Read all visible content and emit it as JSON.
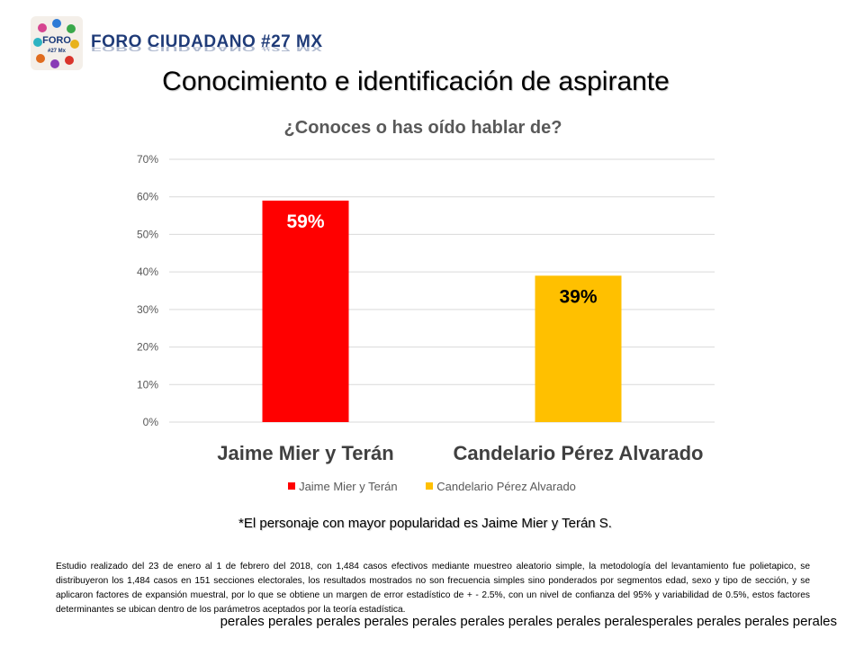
{
  "header": {
    "brand": "FORO CIUDADANO #27 MX",
    "logo": {
      "line1": "FORO",
      "line2": "#27 Mx"
    }
  },
  "page_title": "Conocimiento e identificación de aspirante",
  "chart_data": {
    "type": "bar",
    "title": "¿Conoces o has oído hablar de?",
    "categories": [
      "Jaime Mier y Terán",
      "Candelario Pérez Alvarado"
    ],
    "values": [
      59,
      39
    ],
    "data_labels": [
      "59%",
      "39%"
    ],
    "colors": [
      "#ff0000",
      "#ffc000"
    ],
    "ylim": [
      0,
      70
    ],
    "yticks": [
      0,
      10,
      20,
      30,
      40,
      50,
      60,
      70
    ],
    "ytick_labels": [
      "0%",
      "10%",
      "20%",
      "30%",
      "40%",
      "50%",
      "60%",
      "70%"
    ],
    "grid": true,
    "legend": [
      "Jaime Mier y Terán",
      "Candelario Pérez Alvarado"
    ],
    "legend_position": "bottom"
  },
  "note": "*El personaje con mayor popularidad es Jaime Mier y Terán S.",
  "methodology": "Estudio realizado del 23 de enero al 1 de febrero del 2018, con 1,484 casos efectivos mediante muestreo aleatorio simple, la metodología del levantamiento fue polietapico, se distribuyeron los 1,484 casos en 151 secciones electorales, los resultados mostrados no son frecuencia simples sino ponderados por segmentos edad, sexo y tipo de sección, y se aplicaron factores de expansión muestral, por lo que se obtiene un margen de error estadístico de + - 2.5%, con un nivel de confianza del 95% y variabilidad de 0.5%, estos factores determinantes se ubican dentro de los parámetros aceptados por la teoría estadística.",
  "footer": "perales perales perales perales perales perales perales perales peralesperales perales perales perales"
}
